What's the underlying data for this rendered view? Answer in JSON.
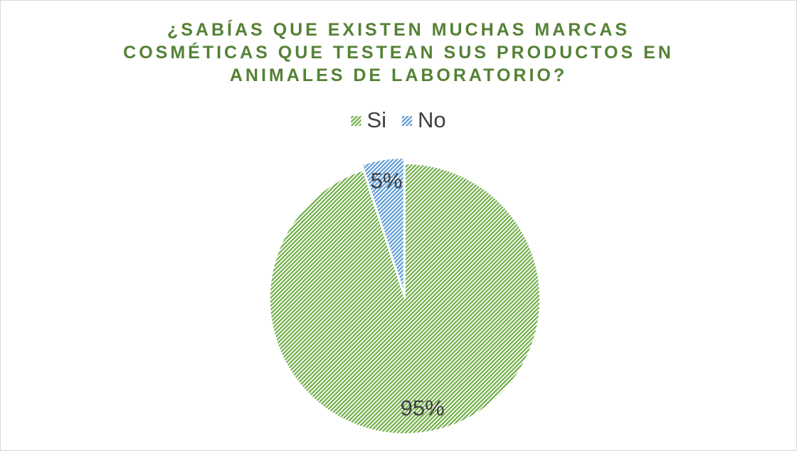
{
  "chart_data": {
    "type": "pie",
    "title": "¿SABÍAS QUE EXISTEN MUCHAS MARCAS COSMÉTICAS QUE TESTEAN SUS PRODUCTOS EN ANIMALES DE LABORATORIO?",
    "categories": [
      "Si",
      "No"
    ],
    "values": [
      95,
      5
    ],
    "value_labels": [
      "95%",
      "5%"
    ],
    "colors": [
      "#70ad47",
      "#5b9bd5"
    ],
    "legend": "top"
  }
}
